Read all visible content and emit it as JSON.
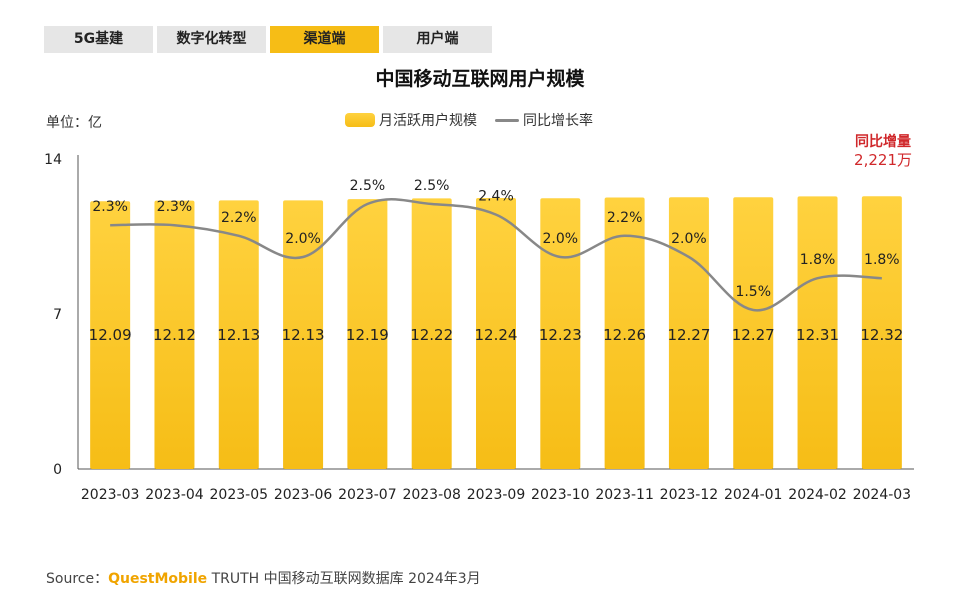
{
  "tabs": [
    {
      "label": "5G基建",
      "active": false
    },
    {
      "label": "数字化转型",
      "active": false
    },
    {
      "label": "渠道端",
      "active": true
    },
    {
      "label": "用户端",
      "active": false
    }
  ],
  "unit_label": "单位：亿",
  "annotation": {
    "title": "同比增量",
    "value": "2,221万"
  },
  "source": {
    "prefix": "Source：",
    "brand": "QuestMobile",
    "rest": " TRUTH 中国移动互联网数据库 2024年3月"
  },
  "colors": {
    "bar_top": "#ffd23f",
    "bar_bottom": "#f6bd16",
    "line": "#888888",
    "accent_text": "#d0282b",
    "active_tab": "#f6bd16"
  },
  "chart_data": {
    "type": "bar+line",
    "title": "中国移动互联网用户规模",
    "categories": [
      "2023-03",
      "2023-04",
      "2023-05",
      "2023-06",
      "2023-07",
      "2023-08",
      "2023-09",
      "2023-10",
      "2023-11",
      "2023-12",
      "2024-01",
      "2024-02",
      "2024-03"
    ],
    "series": [
      {
        "name": "月活跃用户规模",
        "kind": "bar",
        "values": [
          12.09,
          12.12,
          12.13,
          12.13,
          12.19,
          12.22,
          12.24,
          12.23,
          12.26,
          12.27,
          12.27,
          12.31,
          12.32
        ],
        "labels": [
          "12.09",
          "12.12",
          "12.13",
          "12.13",
          "12.19",
          "12.22",
          "12.24",
          "12.23",
          "12.26",
          "12.27",
          "12.27",
          "12.31",
          "12.32"
        ]
      },
      {
        "name": "同比增长率",
        "kind": "line",
        "values": [
          2.3,
          2.3,
          2.2,
          2.0,
          2.5,
          2.5,
          2.4,
          2.0,
          2.2,
          2.0,
          1.5,
          1.8,
          1.8
        ],
        "labels": [
          "2.3%",
          "2.3%",
          "2.2%",
          "2.0%",
          "2.5%",
          "2.5%",
          "2.4%",
          "2.0%",
          "2.2%",
          "2.0%",
          "1.5%",
          "1.8%",
          "1.8%"
        ]
      }
    ],
    "y_ticks": [
      "0",
      "7",
      "14"
    ],
    "ylim": [
      0,
      14
    ],
    "grid": false,
    "legend_position": "top-center"
  }
}
